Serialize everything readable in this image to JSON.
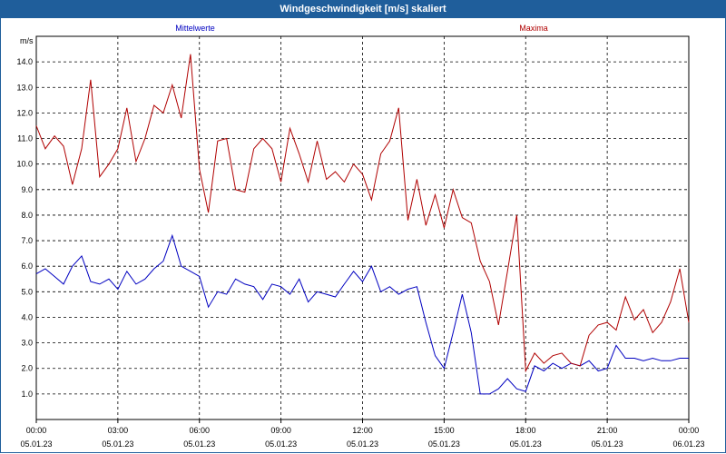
{
  "chart_data": {
    "type": "line",
    "title": "Windgeschwindigkeit [m/s] skaliert",
    "unit": "m/s",
    "ylim": [
      0,
      15
    ],
    "y_ticks": [
      1.0,
      2.0,
      3.0,
      4.0,
      5.0,
      6.0,
      7.0,
      8.0,
      9.0,
      10.0,
      11.0,
      12.0,
      13.0,
      14.0
    ],
    "x_ticks": [
      {
        "time": "00:00",
        "date": "05.01.23"
      },
      {
        "time": "03:00",
        "date": "05.01.23"
      },
      {
        "time": "06:00",
        "date": "05.01.23"
      },
      {
        "time": "09:00",
        "date": "05.01.23"
      },
      {
        "time": "12:00",
        "date": "05.01.23"
      },
      {
        "time": "15:00",
        "date": "05.01.23"
      },
      {
        "time": "18:00",
        "date": "05.01.23"
      },
      {
        "time": "21:00",
        "date": "05.01.23"
      },
      {
        "time": "00:00",
        "date": "06.01.23"
      }
    ],
    "grid": true,
    "x_hours": [
      0,
      0.33,
      0.67,
      1.0,
      1.33,
      1.67,
      2.0,
      2.33,
      2.67,
      3.0,
      3.33,
      3.67,
      4.0,
      4.33,
      4.67,
      5.0,
      5.33,
      5.67,
      6.0,
      6.33,
      6.67,
      7.0,
      7.33,
      7.67,
      8.0,
      8.33,
      8.67,
      9.0,
      9.33,
      9.67,
      10.0,
      10.33,
      10.67,
      11.0,
      11.33,
      11.67,
      12.0,
      12.33,
      12.67,
      13.0,
      13.33,
      13.67,
      14.0,
      14.33,
      14.67,
      15.0,
      15.33,
      15.67,
      16.0,
      16.33,
      16.67,
      17.0,
      17.33,
      17.67,
      18.0,
      18.33,
      18.67,
      19.0,
      19.33,
      19.67,
      20.0,
      20.33,
      20.67,
      21.0,
      21.33,
      21.67,
      22.0,
      22.33,
      22.67,
      23.0,
      23.33,
      23.67,
      24.0
    ],
    "series": [
      {
        "name": "Mittelwerte",
        "color": "#0000c0",
        "values": [
          5.7,
          5.9,
          5.6,
          5.3,
          6.0,
          6.4,
          5.4,
          5.3,
          5.5,
          5.1,
          5.8,
          5.3,
          5.5,
          5.9,
          6.2,
          7.2,
          6.0,
          5.8,
          5.6,
          4.4,
          5.0,
          4.9,
          5.5,
          5.3,
          5.2,
          4.7,
          5.3,
          5.2,
          4.9,
          5.5,
          4.6,
          5.0,
          4.9,
          4.8,
          5.3,
          5.8,
          5.4,
          6.0,
          5.0,
          5.2,
          4.9,
          5.1,
          5.2,
          3.8,
          2.5,
          2.0,
          3.4,
          4.9,
          3.4,
          1.0,
          1.0,
          1.2,
          1.6,
          1.2,
          1.1,
          2.1,
          1.9,
          2.2,
          2.0,
          2.2,
          2.1,
          2.3,
          1.9,
          2.0,
          2.9,
          2.4,
          2.4,
          2.3,
          2.4,
          2.3,
          2.3,
          2.4,
          2.4
        ]
      },
      {
        "name": "Maxima",
        "color": "#b00000",
        "values": [
          11.5,
          10.6,
          11.1,
          10.7,
          9.2,
          10.6,
          13.3,
          9.5,
          10.0,
          10.6,
          12.2,
          10.1,
          11.0,
          12.3,
          12.0,
          13.1,
          11.8,
          14.3,
          9.8,
          8.1,
          10.9,
          11.0,
          9.0,
          8.9,
          10.6,
          11.0,
          10.6,
          9.3,
          11.4,
          10.4,
          9.3,
          10.9,
          9.4,
          9.7,
          9.3,
          10.0,
          9.6,
          8.6,
          10.4,
          10.9,
          12.2,
          7.8,
          9.4,
          7.6,
          8.8,
          7.5,
          9.0,
          7.9,
          7.7,
          6.2,
          5.4,
          3.7,
          5.8,
          8.0,
          1.9,
          2.6,
          2.2,
          2.5,
          2.6,
          2.2,
          2.1,
          3.3,
          3.7,
          3.8,
          3.5,
          4.8,
          3.9,
          4.3,
          3.4,
          3.8,
          4.6,
          5.9,
          3.8
        ]
      }
    ]
  }
}
